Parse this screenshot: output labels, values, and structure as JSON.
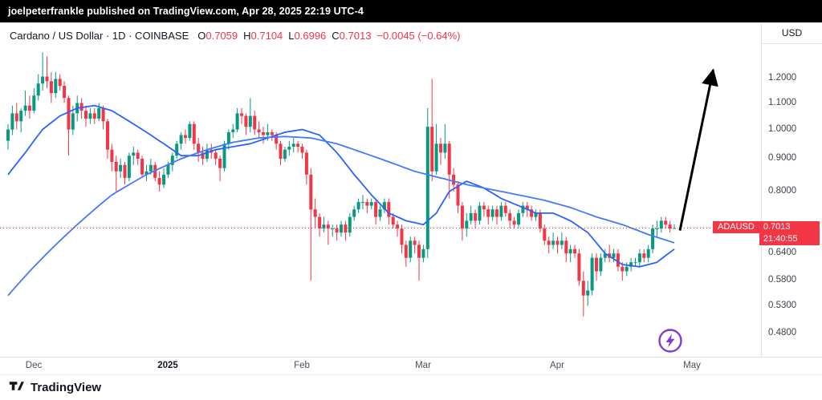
{
  "published_bar": {
    "text": "joelpeterfrankle published on TradingView.com, Apr 28, 2025 22:19 UTC-4"
  },
  "header": {
    "symbol_title": "Cardano / US Dollar · 1D · COINBASE",
    "ohlc": {
      "o_label": "O",
      "o": "0.7059",
      "h_label": "H",
      "h": "0.7104",
      "l_label": "L",
      "l": "0.6996",
      "c_label": "C",
      "c": "0.7013",
      "change": "−0.0045 (−0.64%)"
    }
  },
  "axis": {
    "currency_label": "USD",
    "price_labels": [
      {
        "v": 1.2,
        "label": "1.2000"
      },
      {
        "v": 1.1,
        "label": "1.1000"
      },
      {
        "v": 1.0,
        "label": "1.0000"
      },
      {
        "v": 0.9,
        "label": "0.9000"
      },
      {
        "v": 0.8,
        "label": "0.8000"
      },
      {
        "v": 0.64,
        "label": "0.6400"
      },
      {
        "v": 0.58,
        "label": "0.5800"
      },
      {
        "v": 0.53,
        "label": "0.5300"
      },
      {
        "v": 0.48,
        "label": "0.4800"
      }
    ],
    "time_labels": [
      {
        "i": 6,
        "label": "Dec",
        "strong": false
      },
      {
        "i": 37,
        "label": "2025",
        "strong": true
      },
      {
        "i": 68,
        "label": "Feb",
        "strong": false
      },
      {
        "i": 96,
        "label": "Mar",
        "strong": false
      },
      {
        "i": 127,
        "label": "Apr",
        "strong": false
      },
      {
        "i": 158,
        "label": "May",
        "strong": false
      }
    ]
  },
  "price_badge": {
    "symbol": "ADAUSD",
    "price": "0.7013",
    "countdown": "21:40:55"
  },
  "footer": {
    "brand": "TradingView"
  },
  "colors": {
    "up": "#089981",
    "down": "#f23645",
    "accent_red": "#f23645",
    "flash_purple": "#7e3bd8",
    "brand_dark": "#131722"
  },
  "chart_data": {
    "type": "candlestick",
    "title": "Cardano / US Dollar",
    "exchange": "COINBASE",
    "interval": "1D",
    "scale": "log",
    "grid": false,
    "y_domain": [
      0.44,
      1.36
    ],
    "current_ohlc": {
      "open": 0.7059,
      "high": 0.7104,
      "low": 0.6996,
      "close": 0.7013,
      "change": -0.0045,
      "change_pct": -0.64
    },
    "colors": {
      "up": "#089981",
      "down": "#f23645"
    },
    "current_price_line": {
      "value": 0.7013,
      "style": "dotted",
      "color": "#f23645"
    },
    "candles": [
      [
        0.96,
        1.02,
        0.93,
        1.0
      ],
      [
        1.0,
        1.09,
        0.98,
        1.06
      ],
      [
        1.06,
        1.1,
        1.0,
        1.03
      ],
      [
        1.03,
        1.08,
        0.99,
        1.07
      ],
      [
        1.07,
        1.15,
        1.05,
        1.09
      ],
      [
        1.09,
        1.13,
        1.04,
        1.07
      ],
      [
        1.07,
        1.16,
        1.06,
        1.13
      ],
      [
        1.13,
        1.22,
        1.11,
        1.18
      ],
      [
        1.18,
        1.32,
        1.15,
        1.21
      ],
      [
        1.21,
        1.3,
        1.16,
        1.19
      ],
      [
        1.19,
        1.23,
        1.1,
        1.14
      ],
      [
        1.14,
        1.23,
        1.12,
        1.2
      ],
      [
        1.2,
        1.22,
        1.15,
        1.17
      ],
      [
        1.17,
        1.19,
        1.1,
        1.12
      ],
      [
        1.12,
        1.13,
        0.91,
        1.0
      ],
      [
        1.0,
        1.09,
        0.98,
        1.06
      ],
      [
        1.06,
        1.13,
        1.03,
        1.1
      ],
      [
        1.1,
        1.12,
        1.04,
        1.07
      ],
      [
        1.07,
        1.09,
        1.01,
        1.04
      ],
      [
        1.04,
        1.08,
        1.02,
        1.06
      ],
      [
        1.06,
        1.08,
        1.02,
        1.04
      ],
      [
        1.04,
        1.1,
        1.03,
        1.08
      ],
      [
        1.08,
        1.09,
        1.0,
        1.03
      ],
      [
        1.03,
        1.04,
        0.9,
        0.93
      ],
      [
        0.93,
        0.95,
        0.86,
        0.89
      ],
      [
        0.89,
        0.91,
        0.8,
        0.86
      ],
      [
        0.86,
        0.9,
        0.84,
        0.88
      ],
      [
        0.88,
        0.89,
        0.82,
        0.84
      ],
      [
        0.84,
        0.92,
        0.83,
        0.91
      ],
      [
        0.91,
        0.94,
        0.88,
        0.92
      ],
      [
        0.92,
        0.93,
        0.88,
        0.9
      ],
      [
        0.9,
        0.91,
        0.84,
        0.85
      ],
      [
        0.85,
        0.88,
        0.83,
        0.86
      ],
      [
        0.86,
        0.9,
        0.85,
        0.88
      ],
      [
        0.88,
        0.89,
        0.83,
        0.84
      ],
      [
        0.84,
        0.86,
        0.8,
        0.82
      ],
      [
        0.82,
        0.87,
        0.81,
        0.85
      ],
      [
        0.85,
        0.89,
        0.84,
        0.88
      ],
      [
        0.88,
        0.92,
        0.86,
        0.91
      ],
      [
        0.91,
        0.96,
        0.9,
        0.95
      ],
      [
        0.95,
        0.99,
        0.93,
        0.98
      ],
      [
        0.98,
        1.0,
        0.95,
        0.97
      ],
      [
        0.97,
        1.03,
        0.96,
        1.02
      ],
      [
        1.02,
        1.03,
        0.93,
        0.95
      ],
      [
        0.95,
        0.97,
        0.89,
        0.92
      ],
      [
        0.92,
        0.94,
        0.88,
        0.9
      ],
      [
        0.9,
        0.95,
        0.89,
        0.93
      ],
      [
        0.93,
        0.95,
        0.9,
        0.92
      ],
      [
        0.92,
        0.93,
        0.88,
        0.9
      ],
      [
        0.9,
        0.91,
        0.83,
        0.87
      ],
      [
        0.87,
        0.96,
        0.86,
        0.95
      ],
      [
        0.95,
        1.0,
        0.93,
        0.99
      ],
      [
        0.99,
        1.02,
        0.97,
        1.0
      ],
      [
        1.0,
        1.08,
        0.99,
        1.06
      ],
      [
        1.06,
        1.08,
        1.02,
        1.05
      ],
      [
        1.05,
        1.06,
        0.98,
        1.01
      ],
      [
        1.01,
        1.12,
        0.99,
        1.05
      ],
      [
        1.05,
        1.07,
        0.98,
        1.0
      ],
      [
        1.0,
        1.03,
        0.97,
        0.99
      ],
      [
        0.99,
        1.01,
        0.95,
        0.98
      ],
      [
        0.98,
        1.02,
        0.96,
        0.99
      ],
      [
        0.99,
        1.0,
        0.96,
        0.98
      ],
      [
        0.98,
        0.99,
        0.93,
        0.95
      ],
      [
        0.95,
        0.96,
        0.88,
        0.9
      ],
      [
        0.9,
        0.94,
        0.89,
        0.93
      ],
      [
        0.93,
        0.96,
        0.91,
        0.94
      ],
      [
        0.94,
        0.97,
        0.92,
        0.95
      ],
      [
        0.95,
        0.96,
        0.92,
        0.94
      ],
      [
        0.94,
        0.95,
        0.9,
        0.92
      ],
      [
        0.92,
        0.93,
        0.82,
        0.85
      ],
      [
        0.85,
        0.87,
        0.58,
        0.75
      ],
      [
        0.75,
        0.78,
        0.7,
        0.73
      ],
      [
        0.73,
        0.74,
        0.68,
        0.7
      ],
      [
        0.7,
        0.73,
        0.69,
        0.71
      ],
      [
        0.71,
        0.72,
        0.66,
        0.7
      ],
      [
        0.7,
        0.71,
        0.68,
        0.7
      ],
      [
        0.7,
        0.71,
        0.67,
        0.69
      ],
      [
        0.69,
        0.72,
        0.68,
        0.71
      ],
      [
        0.71,
        0.72,
        0.67,
        0.69
      ],
      [
        0.69,
        0.74,
        0.68,
        0.73
      ],
      [
        0.73,
        0.76,
        0.72,
        0.75
      ],
      [
        0.75,
        0.78,
        0.74,
        0.77
      ],
      [
        0.77,
        0.79,
        0.75,
        0.77
      ],
      [
        0.77,
        0.78,
        0.74,
        0.76
      ],
      [
        0.76,
        0.78,
        0.75,
        0.77
      ],
      [
        0.77,
        0.78,
        0.71,
        0.73
      ],
      [
        0.73,
        0.76,
        0.72,
        0.75
      ],
      [
        0.75,
        0.78,
        0.74,
        0.77
      ],
      [
        0.77,
        0.78,
        0.71,
        0.73
      ],
      [
        0.73,
        0.74,
        0.7,
        0.71
      ],
      [
        0.71,
        0.72,
        0.68,
        0.7
      ],
      [
        0.7,
        0.71,
        0.64,
        0.66
      ],
      [
        0.66,
        0.67,
        0.61,
        0.63
      ],
      [
        0.63,
        0.68,
        0.62,
        0.67
      ],
      [
        0.67,
        0.68,
        0.64,
        0.66
      ],
      [
        0.66,
        0.67,
        0.58,
        0.63
      ],
      [
        0.63,
        0.66,
        0.62,
        0.65
      ],
      [
        0.65,
        1.08,
        0.63,
        1.01
      ],
      [
        1.01,
        1.2,
        0.83,
        0.86
      ],
      [
        0.86,
        1.02,
        0.85,
        0.95
      ],
      [
        0.95,
        0.97,
        0.88,
        0.92
      ],
      [
        0.92,
        1.02,
        0.9,
        0.95
      ],
      [
        0.95,
        0.96,
        0.78,
        0.85
      ],
      [
        0.85,
        0.87,
        0.8,
        0.82
      ],
      [
        0.82,
        0.83,
        0.74,
        0.76
      ],
      [
        0.76,
        0.77,
        0.67,
        0.7
      ],
      [
        0.7,
        0.74,
        0.68,
        0.72
      ],
      [
        0.72,
        0.76,
        0.71,
        0.74
      ],
      [
        0.74,
        0.75,
        0.7,
        0.72
      ],
      [
        0.72,
        0.77,
        0.71,
        0.76
      ],
      [
        0.76,
        0.77,
        0.73,
        0.75
      ],
      [
        0.75,
        0.76,
        0.71,
        0.73
      ],
      [
        0.73,
        0.76,
        0.72,
        0.75
      ],
      [
        0.75,
        0.76,
        0.71,
        0.73
      ],
      [
        0.73,
        0.77,
        0.72,
        0.76
      ],
      [
        0.76,
        0.77,
        0.73,
        0.74
      ],
      [
        0.74,
        0.75,
        0.7,
        0.72
      ],
      [
        0.72,
        0.73,
        0.7,
        0.71
      ],
      [
        0.71,
        0.75,
        0.7,
        0.74
      ],
      [
        0.74,
        0.77,
        0.73,
        0.76
      ],
      [
        0.76,
        0.77,
        0.73,
        0.75
      ],
      [
        0.75,
        0.76,
        0.72,
        0.73
      ],
      [
        0.73,
        0.75,
        0.72,
        0.74
      ],
      [
        0.74,
        0.75,
        0.69,
        0.7
      ],
      [
        0.7,
        0.71,
        0.66,
        0.67
      ],
      [
        0.67,
        0.68,
        0.64,
        0.66
      ],
      [
        0.66,
        0.69,
        0.65,
        0.67
      ],
      [
        0.67,
        0.68,
        0.64,
        0.66
      ],
      [
        0.66,
        0.69,
        0.65,
        0.67
      ],
      [
        0.67,
        0.68,
        0.62,
        0.64
      ],
      [
        0.64,
        0.66,
        0.62,
        0.65
      ],
      [
        0.65,
        0.66,
        0.63,
        0.64
      ],
      [
        0.64,
        0.65,
        0.57,
        0.58
      ],
      [
        0.58,
        0.6,
        0.51,
        0.55
      ],
      [
        0.55,
        0.58,
        0.53,
        0.56
      ],
      [
        0.56,
        0.64,
        0.55,
        0.63
      ],
      [
        0.63,
        0.64,
        0.58,
        0.6
      ],
      [
        0.6,
        0.64,
        0.59,
        0.63
      ],
      [
        0.63,
        0.65,
        0.62,
        0.64
      ],
      [
        0.64,
        0.66,
        0.62,
        0.63
      ],
      [
        0.63,
        0.65,
        0.62,
        0.64
      ],
      [
        0.64,
        0.65,
        0.6,
        0.61
      ],
      [
        0.61,
        0.62,
        0.58,
        0.6
      ],
      [
        0.6,
        0.62,
        0.59,
        0.61
      ],
      [
        0.61,
        0.63,
        0.6,
        0.62
      ],
      [
        0.62,
        0.63,
        0.61,
        0.62
      ],
      [
        0.62,
        0.65,
        0.61,
        0.64
      ],
      [
        0.64,
        0.65,
        0.62,
        0.63
      ],
      [
        0.63,
        0.66,
        0.62,
        0.65
      ],
      [
        0.65,
        0.71,
        0.64,
        0.7
      ],
      [
        0.7,
        0.72,
        0.68,
        0.7
      ],
      [
        0.7,
        0.73,
        0.69,
        0.72
      ],
      [
        0.72,
        0.73,
        0.7,
        0.71
      ],
      [
        0.71,
        0.72,
        0.69,
        0.7
      ],
      [
        0.7,
        0.7104,
        0.6996,
        0.7013
      ]
    ],
    "ma_lines": [
      {
        "name": "ma-fast",
        "color": "#2962ff",
        "points": [
          [
            0,
            0.85
          ],
          [
            4,
            0.92
          ],
          [
            8,
            1.0
          ],
          [
            12,
            1.05
          ],
          [
            16,
            1.08
          ],
          [
            20,
            1.09
          ],
          [
            24,
            1.07
          ],
          [
            28,
            1.03
          ],
          [
            32,
            0.99
          ],
          [
            36,
            0.95
          ],
          [
            40,
            0.91
          ],
          [
            44,
            0.91
          ],
          [
            48,
            0.93
          ],
          [
            52,
            0.94
          ],
          [
            56,
            0.95
          ],
          [
            60,
            0.97
          ],
          [
            64,
            0.99
          ],
          [
            68,
            1.0
          ],
          [
            72,
            0.98
          ],
          [
            76,
            0.92
          ],
          [
            80,
            0.85
          ],
          [
            84,
            0.79
          ],
          [
            88,
            0.74
          ],
          [
            92,
            0.72
          ],
          [
            96,
            0.71
          ],
          [
            99,
            0.74
          ],
          [
            102,
            0.8
          ],
          [
            106,
            0.83
          ],
          [
            110,
            0.81
          ],
          [
            114,
            0.78
          ],
          [
            118,
            0.76
          ],
          [
            122,
            0.74
          ],
          [
            126,
            0.74
          ],
          [
            130,
            0.72
          ],
          [
            134,
            0.69
          ],
          [
            138,
            0.64
          ],
          [
            142,
            0.615
          ],
          [
            146,
            0.61
          ],
          [
            150,
            0.62
          ],
          [
            154,
            0.65
          ]
        ]
      },
      {
        "name": "ma-slow",
        "color": "#4378ff",
        "points": [
          [
            0,
            0.55
          ],
          [
            8,
            0.63
          ],
          [
            16,
            0.71
          ],
          [
            24,
            0.79
          ],
          [
            32,
            0.85
          ],
          [
            40,
            0.9
          ],
          [
            46,
            0.93
          ],
          [
            52,
            0.955
          ],
          [
            58,
            0.97
          ],
          [
            64,
            0.975
          ],
          [
            70,
            0.97
          ],
          [
            76,
            0.95
          ],
          [
            82,
            0.92
          ],
          [
            88,
            0.89
          ],
          [
            94,
            0.86
          ],
          [
            100,
            0.84
          ],
          [
            106,
            0.82
          ],
          [
            112,
            0.805
          ],
          [
            118,
            0.79
          ],
          [
            124,
            0.775
          ],
          [
            130,
            0.755
          ],
          [
            136,
            0.73
          ],
          [
            142,
            0.71
          ],
          [
            148,
            0.685
          ],
          [
            154,
            0.665
          ]
        ]
      }
    ],
    "annotations": {
      "arrow": {
        "type": "arrow",
        "color": "#000000",
        "from": [
          155.3,
          0.695
        ],
        "to": [
          163.0,
          1.24
        ]
      }
    }
  }
}
